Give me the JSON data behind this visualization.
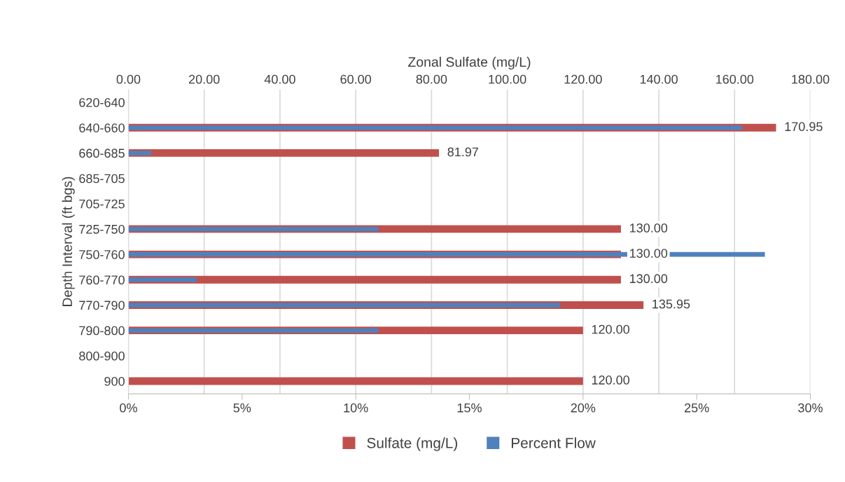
{
  "chart_data": {
    "type": "bar",
    "orientation": "horizontal",
    "categories": [
      "620-640",
      "640-660",
      "660-685",
      "685-705",
      "705-725",
      "725-750",
      "750-760",
      "760-770",
      "770-790",
      "790-800",
      "800-900",
      "900"
    ],
    "series": [
      {
        "name": "Sulfate (mg/L)",
        "color": "#c0504d",
        "axis": "x2",
        "values": [
          null,
          170.95,
          81.97,
          null,
          null,
          130.0,
          130.0,
          130.0,
          135.95,
          120.0,
          null,
          120.0
        ],
        "value_labels": [
          null,
          "170.95",
          "81.97",
          null,
          null,
          "130.00",
          "130.00",
          "130.00",
          "135.95",
          "120.00",
          null,
          "120.00"
        ]
      },
      {
        "name": "Percent Flow",
        "color": "#4f81bd",
        "values": [
          null,
          27,
          1,
          null,
          null,
          11,
          28,
          3,
          19,
          11,
          null,
          null
        ]
      }
    ],
    "ylabel": "Depth Interval (ft bgs)",
    "x2label": "Zonal Sulfate (mg/L)",
    "xlim": [
      0,
      30
    ],
    "xticks": [
      {
        "value": 0,
        "label": "0%"
      },
      {
        "value": 5,
        "label": "5%"
      },
      {
        "value": 10,
        "label": "10%"
      },
      {
        "value": 15,
        "label": "15%"
      },
      {
        "value": 20,
        "label": "20%"
      },
      {
        "value": 25,
        "label": "25%"
      },
      {
        "value": 30,
        "label": "30%"
      }
    ],
    "x2lim": [
      0,
      180
    ],
    "x2ticks": [
      {
        "value": 0,
        "label": "0.00"
      },
      {
        "value": 20,
        "label": "20.00"
      },
      {
        "value": 40,
        "label": "40.00"
      },
      {
        "value": 60,
        "label": "60.00"
      },
      {
        "value": 80,
        "label": "80.00"
      },
      {
        "value": 100,
        "label": "100.00"
      },
      {
        "value": 120,
        "label": "120.00"
      },
      {
        "value": 140,
        "label": "140.00"
      },
      {
        "value": 160,
        "label": "160.00"
      },
      {
        "value": 180,
        "label": "180.00"
      }
    ],
    "grid": "x2",
    "legend": "bottom"
  }
}
